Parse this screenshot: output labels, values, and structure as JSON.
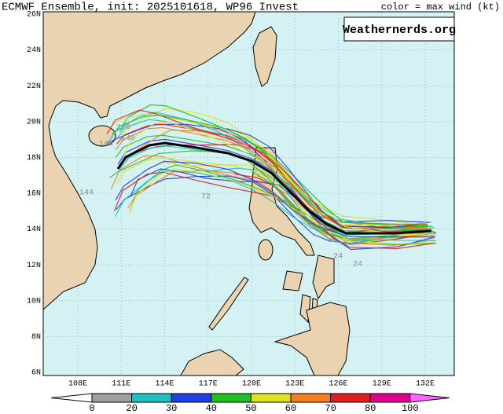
{
  "header": {
    "title": "ECMWF Ensemble, init: 2025101618, WP96 Invest",
    "legend_caption": "color = max wind (kt)",
    "watermark": "Weathernerds.org"
  },
  "map": {
    "lat_labels": [
      "26N",
      "24N",
      "22N",
      "20N",
      "18N",
      "16N",
      "14N",
      "12N",
      "10N",
      "8N",
      "6N"
    ],
    "lon_labels": [
      "108E",
      "111E",
      "114E",
      "117E",
      "120E",
      "123E",
      "126E",
      "129E",
      "132E"
    ],
    "track_labels": [
      "120",
      "140",
      "144",
      "72",
      "144",
      "24",
      "24"
    ]
  },
  "colorbar": {
    "ticks": [
      0,
      20,
      30,
      40,
      50,
      60,
      70,
      80,
      100
    ],
    "colors": [
      "#a0a0a0",
      "#20c0c0",
      "#2040e0",
      "#20c020",
      "#e0e020",
      "#f08020",
      "#e02020",
      "#e00090"
    ],
    "under_color": "#ffffff",
    "over_color": "#ff66ff"
  }
}
